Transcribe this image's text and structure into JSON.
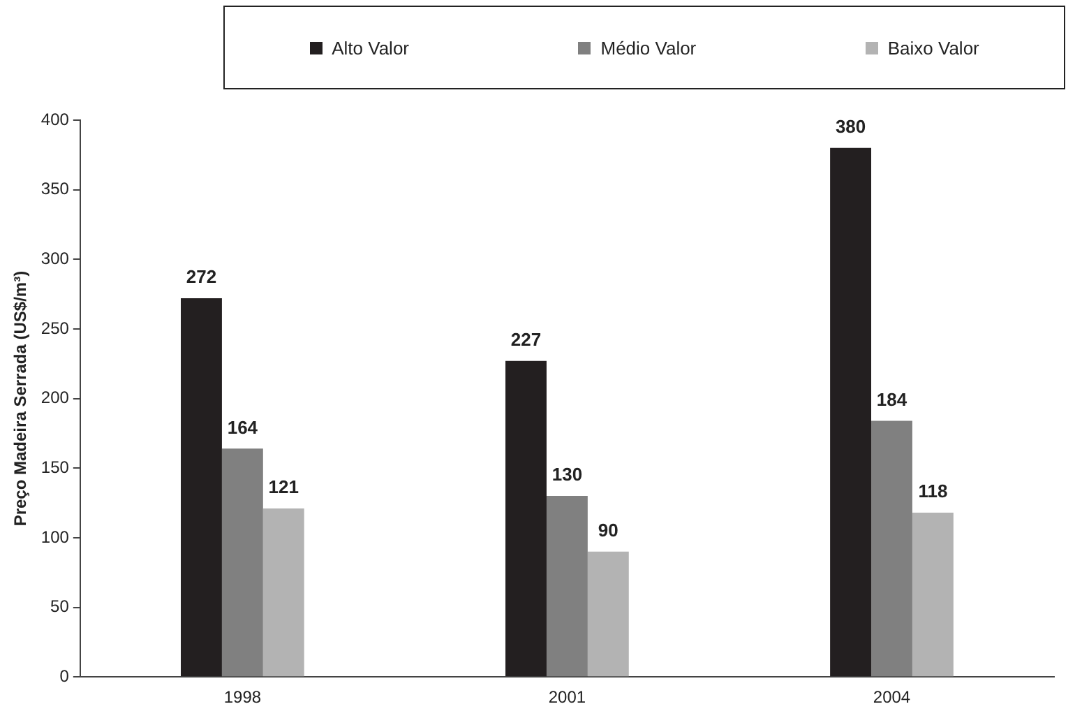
{
  "chart_data": {
    "type": "bar",
    "ylabel": "Preço Madeira Serrada (US$/m³)",
    "categories": [
      "1998",
      "2001",
      "2004"
    ],
    "series": [
      {
        "name": "Alto Valor",
        "color": "#231f20",
        "values": [
          272,
          227,
          380
        ]
      },
      {
        "name": "Médio Valor",
        "color": "#808080",
        "values": [
          164,
          130,
          184
        ]
      },
      {
        "name": "Baixo Valor",
        "color": "#b3b3b3",
        "values": [
          121,
          90,
          118
        ]
      }
    ],
    "ylim": [
      0,
      400
    ],
    "yticks": [
      0,
      50,
      100,
      150,
      200,
      250,
      300,
      350,
      400
    ],
    "grid": false,
    "legend": "top",
    "data_labels": true
  }
}
